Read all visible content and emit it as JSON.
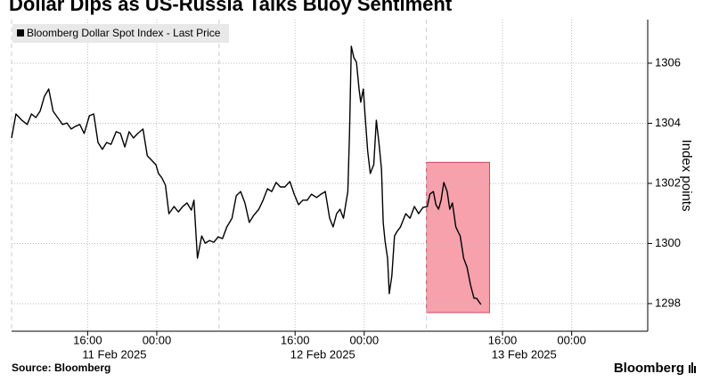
{
  "chart_data": {
    "type": "line",
    "title": "Dollar Dips as US-Russia Talks Buoy Sentiment",
    "ylabel": "Index points",
    "source": "Source: Bloomberg",
    "brand": "Bloomberg",
    "legend": "upper left",
    "grid": true,
    "xlim": [
      7.2,
      80.8
    ],
    "ylim": [
      1297.08,
      1307.45
    ],
    "yticks": [
      1298,
      1300,
      1302,
      1304,
      1306
    ],
    "xticks": [
      {
        "value": 16,
        "label": "16:00"
      },
      {
        "value": 24,
        "label": "00:00"
      },
      {
        "value": 40,
        "label": "16:00"
      },
      {
        "value": 48,
        "label": "00:00"
      },
      {
        "value": 64,
        "label": "16:00"
      },
      {
        "value": 72,
        "label": "00:00"
      }
    ],
    "x_date_labels": [
      {
        "value": 19.1,
        "label": "11 Feb 2025"
      },
      {
        "value": 43.2,
        "label": "12 Feb 2025"
      },
      {
        "value": 66.5,
        "label": "13 Feb 2025"
      }
    ],
    "session_breaks": [
      31.2,
      55.2
    ],
    "highlight": {
      "x": [
        55.2,
        62.5
      ],
      "y": [
        1297.7,
        1302.7
      ],
      "color": "#f7a1ad"
    },
    "x": [
      7.2,
      7.7,
      8.4,
      9.0,
      9.5,
      10.0,
      10.5,
      11.0,
      11.5,
      12.0,
      12.6,
      13.1,
      13.6,
      14.1,
      14.6,
      15.1,
      15.6,
      16.2,
      16.7,
      17.2,
      17.7,
      18.2,
      18.7,
      19.3,
      19.8,
      20.3,
      20.8,
      21.3,
      21.8,
      22.4,
      22.9,
      23.4,
      23.9,
      24.2,
      24.6,
      25.0,
      25.4,
      26.0,
      26.5,
      27.0,
      27.5,
      28.0,
      28.3,
      28.7,
      29.2,
      29.6,
      30.1,
      30.6,
      31.1,
      31.6,
      32.1,
      32.7,
      33.2,
      33.7,
      34.2,
      34.7,
      35.2,
      35.8,
      36.3,
      36.8,
      37.3,
      37.8,
      38.3,
      38.8,
      39.4,
      39.9,
      40.4,
      40.9,
      41.4,
      41.9,
      42.5,
      43.0,
      43.5,
      44.0,
      44.4,
      44.8,
      45.2,
      45.6,
      46.1,
      46.3,
      46.5,
      46.8,
      47.1,
      47.4,
      47.6,
      47.9,
      48.1,
      48.4,
      48.7,
      49.1,
      49.4,
      49.7,
      50.0,
      50.2,
      50.4,
      50.7,
      50.9,
      51.2,
      51.5,
      51.8,
      52.2,
      52.8,
      53.3,
      53.8,
      54.3,
      54.8,
      55.3,
      55.6,
      56.0,
      56.3,
      56.6,
      56.9,
      57.2,
      57.6,
      57.9,
      58.2,
      58.6,
      59.1,
      59.5,
      59.9,
      60.3,
      60.7,
      61.0,
      61.2,
      61.5
    ],
    "series": [
      {
        "name": "Bloomberg Dollar Spot Index - Last Price",
        "color": "#000000",
        "values": [
          1303.51,
          1304.31,
          1304.1,
          1303.96,
          1304.31,
          1304.19,
          1304.4,
          1304.9,
          1305.14,
          1304.4,
          1304.16,
          1303.96,
          1304.01,
          1303.81,
          1303.9,
          1303.96,
          1303.66,
          1304.25,
          1304.31,
          1303.36,
          1303.13,
          1303.36,
          1303.3,
          1303.72,
          1303.66,
          1303.21,
          1303.72,
          1303.51,
          1303.66,
          1303.81,
          1302.92,
          1302.77,
          1302.62,
          1302.33,
          1302.18,
          1301.94,
          1300.99,
          1301.23,
          1301.05,
          1301.23,
          1301.35,
          1301.11,
          1301.44,
          1299.51,
          1300.25,
          1300.01,
          1300.1,
          1300.04,
          1300.22,
          1300.16,
          1300.55,
          1300.84,
          1301.59,
          1301.73,
          1301.35,
          1300.7,
          1300.93,
          1301.14,
          1301.44,
          1301.82,
          1301.73,
          1302.03,
          1301.88,
          1301.88,
          1302.06,
          1301.64,
          1301.29,
          1301.44,
          1301.44,
          1301.64,
          1301.53,
          1301.64,
          1301.73,
          1300.84,
          1300.55,
          1300.99,
          1301.14,
          1300.84,
          1301.73,
          1303.66,
          1306.56,
          1306.18,
          1306.03,
          1305.14,
          1304.7,
          1305.14,
          1304.25,
          1303.07,
          1302.33,
          1302.62,
          1304.1,
          1303.36,
          1302.47,
          1300.7,
          1300.1,
          1299.51,
          1298.33,
          1298.92,
          1300.25,
          1300.4,
          1300.55,
          1300.99,
          1300.84,
          1301.23,
          1300.99,
          1301.2,
          1301.23,
          1301.64,
          1301.73,
          1301.29,
          1301.14,
          1301.44,
          1302.03,
          1301.73,
          1301.14,
          1301.35,
          1300.55,
          1300.25,
          1299.51,
          1299.21,
          1298.62,
          1298.18,
          1298.18,
          1298.09,
          1297.97
        ]
      }
    ]
  }
}
